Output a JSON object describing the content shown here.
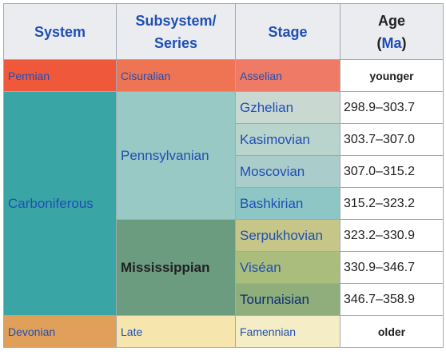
{
  "header": {
    "system": "System",
    "subsystem": "Subsystem/",
    "series": "Series",
    "stage": "Stage",
    "age": "Age",
    "age_unit_open": "(",
    "age_unit": "Ma",
    "age_unit_close": ")"
  },
  "rows": {
    "permian": {
      "system": "Permian",
      "series": "Cisuralian",
      "stage": "Asselian",
      "age": "younger"
    },
    "carboniferous": {
      "system": "Carboniferous",
      "pennsylvanian": "Pennsylvanian",
      "mississippian": "Mississippian",
      "stages": [
        {
          "stage": "Gzhelian",
          "age": "298.9–303.7"
        },
        {
          "stage": "Kasimovian",
          "age": "303.7–307.0"
        },
        {
          "stage": "Moscovian",
          "age": "307.0–315.2"
        },
        {
          "stage": "Bashkirian",
          "age": "315.2–323.2"
        },
        {
          "stage": "Serpukhovian",
          "age": "323.2–330.9"
        },
        {
          "stage": "Viséan",
          "age": "330.9–346.7"
        },
        {
          "stage": "Tournaisian",
          "age": "346.7–358.9"
        }
      ]
    },
    "devonian": {
      "system": "Devonian",
      "series": "Late",
      "stage": "Famennian",
      "age": "older"
    }
  },
  "colors": {
    "header_bg": "#eaecf0",
    "link": "#1f4fb6",
    "permian": "#f0583c",
    "cisuralian": "#ef7453",
    "asselian": "#ef7a66",
    "carboniferous": "#3aa5a5",
    "pennsylvanian": "#98c9c4",
    "mississippian": "#6c9c7f",
    "gzhelian": "#cad8d2",
    "kasimovian": "#b9d4cc",
    "moscovian": "#aacccb",
    "bashkirian": "#8ec6c5",
    "serpukhovian": "#c5c687",
    "visean": "#abbd7d",
    "tournaisian": "#8fae7b",
    "devonian": "#e0a05a",
    "late": "#f6e5ad",
    "famennian": "#f5edc5"
  }
}
